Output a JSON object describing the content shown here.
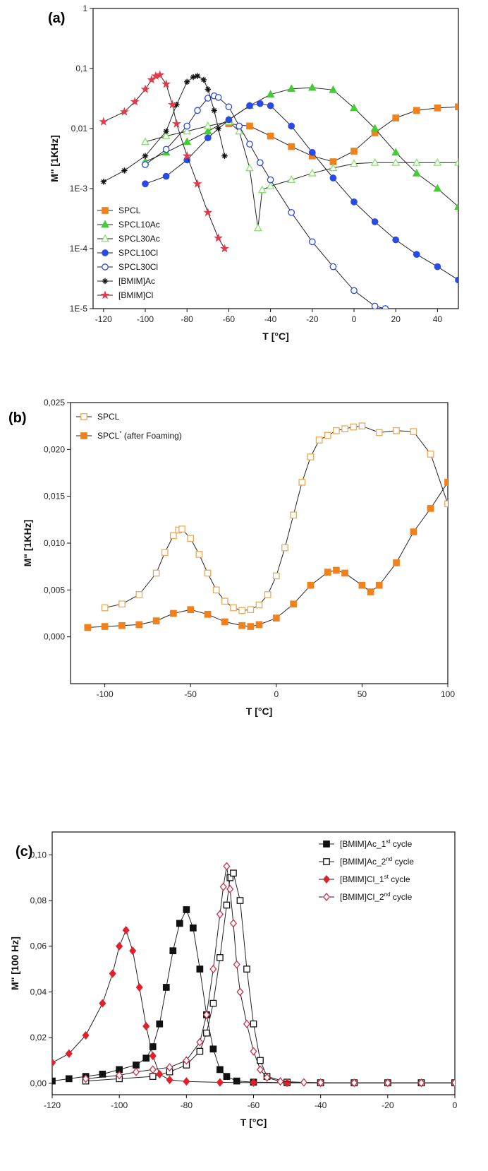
{
  "chart_data": [
    {
      "panel_label": "(a)",
      "type": "line",
      "xlabel": "T [°C]",
      "ylabel": "M'' [1KHz]",
      "ylog": true,
      "xlim": [
        -125,
        50
      ],
      "ylim": [
        1e-05,
        1
      ],
      "xticks": [
        -120,
        -100,
        -80,
        -60,
        -40,
        -20,
        0,
        20,
        40
      ],
      "xtick_labels": [
        "-120",
        "-100",
        "-80",
        "-60",
        "-40",
        "-20",
        "0",
        "20",
        "40"
      ],
      "yticks": [
        1e-05,
        0.0001,
        0.001,
        0.01,
        0.1,
        1
      ],
      "ytick_labels": [
        "1E-5",
        "1E-4",
        "1E-3",
        "0,01",
        "0,1",
        "1"
      ],
      "legend_position": "bottom-left",
      "series": [
        {
          "name": "SPCL",
          "color": "#f0821e",
          "marker": "square-filled",
          "x": [
            -60,
            -50,
            -40,
            -30,
            -20,
            -10,
            0,
            10,
            20,
            30,
            40,
            50
          ],
          "y": [
            0.012,
            0.011,
            0.0075,
            0.005,
            0.0035,
            0.0028,
            0.0042,
            0.0085,
            0.015,
            0.02,
            0.022,
            0.023
          ]
        },
        {
          "name": "SPCL10Ac",
          "color": "#44cc33",
          "marker": "triangle-filled",
          "x": [
            -100,
            -90,
            -80,
            -70,
            -60,
            -50,
            -40,
            -30,
            -20,
            -10,
            0,
            10,
            20,
            30,
            40,
            50
          ],
          "y": [
            0.0028,
            0.004,
            0.006,
            0.009,
            0.014,
            0.024,
            0.037,
            0.046,
            0.048,
            0.044,
            0.022,
            0.01,
            0.004,
            0.0018,
            0.001,
            0.0005
          ]
        },
        {
          "name": "SPCL30Ac",
          "color": "#88e070",
          "marker": "triangle-open",
          "x": [
            -100,
            -90,
            -80,
            -70,
            -60,
            -55,
            -50,
            -46,
            -44,
            -40,
            -30,
            -20,
            -10,
            0,
            10,
            20,
            30,
            40,
            50
          ],
          "y": [
            0.006,
            0.0075,
            0.009,
            0.011,
            0.013,
            0.009,
            0.0022,
            0.00022,
            0.00095,
            0.0011,
            0.0014,
            0.0018,
            0.0022,
            0.0026,
            0.0027,
            0.0027,
            0.0027,
            0.0027,
            0.0027
          ]
        },
        {
          "name": "SPCL10Cl",
          "color": "#2a4ae8",
          "marker": "circle-filled",
          "x": [
            -100,
            -90,
            -80,
            -70,
            -60,
            -50,
            -45,
            -40,
            -30,
            -20,
            -10,
            0,
            10,
            20,
            30,
            40,
            50
          ],
          "y": [
            0.0012,
            0.0016,
            0.003,
            0.007,
            0.014,
            0.024,
            0.026,
            0.024,
            0.011,
            0.004,
            0.0015,
            0.0006,
            0.00028,
            0.00014,
            8e-05,
            5e-05,
            3e-05
          ]
        },
        {
          "name": "SPCL30Cl",
          "color": "#2a4ae8",
          "marker": "circle-open",
          "x": [
            -100,
            -90,
            -80,
            -75,
            -70,
            -67,
            -65,
            -60,
            -55,
            -50,
            -45,
            -40,
            -30,
            -20,
            -10,
            0,
            10,
            15
          ],
          "y": [
            0.0025,
            0.0045,
            0.011,
            0.02,
            0.032,
            0.035,
            0.033,
            0.023,
            0.011,
            0.0055,
            0.0027,
            0.0014,
            0.0004,
            0.00013,
            5e-05,
            2e-05,
            1.1e-05,
            1e-05
          ]
        },
        {
          "name": "[BMIM]Ac",
          "color": "#111111",
          "marker": "asterisk",
          "x": [
            -120,
            -110,
            -100,
            -90,
            -85,
            -80,
            -77,
            -75,
            -72,
            -70,
            -67,
            -65,
            -62
          ],
          "y": [
            0.0013,
            0.002,
            0.0035,
            0.009,
            0.025,
            0.06,
            0.072,
            0.075,
            0.065,
            0.045,
            0.02,
            0.01,
            0.0035
          ]
        },
        {
          "name": "[BMIM]Cl",
          "color": "#e23a4a",
          "marker": "star",
          "x": [
            -120,
            -110,
            -105,
            -100,
            -97,
            -95,
            -93,
            -90,
            -87,
            -85,
            -80,
            -75,
            -70,
            -65,
            -62
          ],
          "y": [
            0.013,
            0.019,
            0.028,
            0.045,
            0.065,
            0.075,
            0.078,
            0.055,
            0.025,
            0.012,
            0.0035,
            0.0012,
            0.0004,
            0.00015,
            0.0001
          ]
        }
      ]
    },
    {
      "panel_label": "(b)",
      "type": "line",
      "xlabel": "T [°C]",
      "ylabel": "M\" [1KHz]",
      "xlim": [
        -120,
        100
      ],
      "ylim": [
        -0.005,
        0.025
      ],
      "xticks": [
        -100,
        -50,
        0,
        50,
        100
      ],
      "xtick_labels": [
        "-100",
        "-50",
        "0",
        "50",
        "100"
      ],
      "yticks": [
        0,
        0.005,
        0.01,
        0.015,
        0.02,
        0.025
      ],
      "ytick_labels": [
        "0,000",
        "0,005",
        "0,010",
        "0,015",
        "0,020",
        "0,025"
      ],
      "legend_position": "top-left",
      "series": [
        {
          "name": "SPCL",
          "color": "#e8a95a",
          "marker": "square-open",
          "x": [
            -100,
            -90,
            -80,
            -70,
            -65,
            -60,
            -57,
            -55,
            -50,
            -45,
            -40,
            -35,
            -30,
            -25,
            -20,
            -15,
            -10,
            -5,
            0,
            5,
            10,
            15,
            20,
            25,
            30,
            35,
            40,
            45,
            50,
            60,
            70,
            80,
            90,
            100
          ],
          "y": [
            0.0031,
            0.0035,
            0.0045,
            0.0068,
            0.009,
            0.0108,
            0.0114,
            0.0115,
            0.0105,
            0.0088,
            0.0068,
            0.005,
            0.0038,
            0.0031,
            0.0028,
            0.0029,
            0.0034,
            0.0045,
            0.0065,
            0.0095,
            0.013,
            0.0165,
            0.0192,
            0.021,
            0.0215,
            0.022,
            0.0222,
            0.0224,
            0.0225,
            0.0218,
            0.022,
            0.0219,
            0.0195,
            0.0142
          ]
        },
        {
          "name": "SPCL* (after Foaming)",
          "legend_label": "SPCL",
          "legend_superscript": "*",
          "legend_suffix": " (after Foaming)",
          "color": "#f0821e",
          "marker": "square-filled",
          "x": [
            -110,
            -100,
            -90,
            -80,
            -70,
            -60,
            -50,
            -40,
            -30,
            -20,
            -15,
            -10,
            0,
            10,
            20,
            30,
            35,
            40,
            50,
            55,
            60,
            70,
            80,
            90,
            100
          ],
          "y": [
            0.001,
            0.0011,
            0.0012,
            0.0013,
            0.0017,
            0.0025,
            0.0029,
            0.0024,
            0.0016,
            0.0012,
            0.0011,
            0.0013,
            0.002,
            0.0035,
            0.0055,
            0.0069,
            0.0071,
            0.0068,
            0.0055,
            0.0048,
            0.0055,
            0.0079,
            0.0112,
            0.0137,
            0.0165
          ]
        }
      ]
    },
    {
      "panel_label": "(c)",
      "type": "line",
      "xlabel": "T [°C]",
      "ylabel": "M'' [100 Hz]",
      "xlim": [
        -120,
        0
      ],
      "ylim": [
        -0.005,
        0.11
      ],
      "xticks": [
        -120,
        -100,
        -80,
        -60,
        -40,
        -20,
        0
      ],
      "xtick_labels": [
        "-120",
        "-100",
        "-80",
        "-60",
        "-40",
        "-20",
        "0"
      ],
      "yticks": [
        0,
        0.02,
        0.04,
        0.06,
        0.08,
        0.1
      ],
      "ytick_labels": [
        "0,00",
        "0,02",
        "0,04",
        "0,06",
        "0,08",
        "0,10"
      ],
      "legend_position": "top-right",
      "series": [
        {
          "name": "[BMIM]Ac_1st cycle",
          "legend_label": "[BMIM]Ac_1",
          "legend_superscript": "st",
          "legend_suffix": " cycle",
          "color": "#111111",
          "marker": "square-filled",
          "x": [
            -120,
            -115,
            -110,
            -105,
            -100,
            -95,
            -92,
            -90,
            -88,
            -86,
            -84,
            -82,
            -80,
            -78,
            -76,
            -74,
            -72,
            -70,
            -68,
            -65,
            -60,
            -50,
            -40,
            -30,
            -20,
            -10,
            0
          ],
          "y": [
            0.001,
            0.002,
            0.003,
            0.004,
            0.006,
            0.008,
            0.011,
            0.016,
            0.026,
            0.042,
            0.058,
            0.07,
            0.076,
            0.068,
            0.05,
            0.03,
            0.015,
            0.006,
            0.003,
            0.001,
            0.0005,
            0.0003,
            0.0002,
            0.0002,
            0.0002,
            0.0002,
            0.0002
          ]
        },
        {
          "name": "[BMIM]Ac_2nd cycle",
          "legend_label": "[BMIM]Ac_2",
          "legend_superscript": "nd",
          "legend_suffix": " cycle",
          "color": "#111111",
          "marker": "square-open",
          "x": [
            -110,
            -100,
            -90,
            -85,
            -80,
            -76,
            -74,
            -72,
            -70,
            -68,
            -67,
            -66,
            -64,
            -62,
            -60,
            -58,
            -56,
            -50,
            -40,
            -30,
            -20,
            -10,
            0
          ],
          "y": [
            0.001,
            0.002,
            0.003,
            0.005,
            0.008,
            0.014,
            0.022,
            0.035,
            0.055,
            0.078,
            0.09,
            0.092,
            0.08,
            0.05,
            0.026,
            0.01,
            0.003,
            0.0005,
            0.0002,
            0.0002,
            0.0002,
            0.0002,
            0.0002
          ]
        },
        {
          "name": "[BMIM]Cl_1st cycle",
          "legend_label": "[BMIM]Cl_1",
          "legend_superscript": "st",
          "legend_suffix": " cycle",
          "color": "#e0202a",
          "marker": "diamond-filled",
          "x": [
            -120,
            -115,
            -110,
            -105,
            -102,
            -100,
            -98,
            -96,
            -94,
            -92,
            -90,
            -88,
            -85,
            -80,
            -70,
            -60,
            -50,
            -40,
            -30,
            -20,
            -10,
            0
          ],
          "y": [
            0.009,
            0.013,
            0.021,
            0.035,
            0.048,
            0.06,
            0.067,
            0.058,
            0.042,
            0.025,
            0.012,
            0.004,
            0.0015,
            0.0008,
            0.0004,
            0.0003,
            0.0002,
            0.0002,
            0.0002,
            0.0002,
            0.0002,
            0.0002
          ]
        },
        {
          "name": "[BMIM]Cl_2nd cycle",
          "legend_label": "[BMIM]Cl_2",
          "legend_superscript": "nd",
          "legend_suffix": " cycle",
          "color": "#c8304a",
          "marker": "diamond-open",
          "x": [
            -110,
            -100,
            -95,
            -90,
            -85,
            -80,
            -76,
            -74,
            -72,
            -70,
            -69,
            -68,
            -67,
            -66,
            -65,
            -64,
            -62,
            -60,
            -58,
            -56,
            -52,
            -45,
            -40,
            -30,
            -20,
            -10,
            0
          ],
          "y": [
            0.002,
            0.0035,
            0.005,
            0.006,
            0.007,
            0.01,
            0.018,
            0.03,
            0.05,
            0.074,
            0.086,
            0.095,
            0.085,
            0.07,
            0.052,
            0.04,
            0.026,
            0.014,
            0.006,
            0.0025,
            0.0008,
            0.0004,
            0.0003,
            0.0002,
            0.0002,
            0.0002,
            0.0002
          ]
        }
      ]
    }
  ]
}
